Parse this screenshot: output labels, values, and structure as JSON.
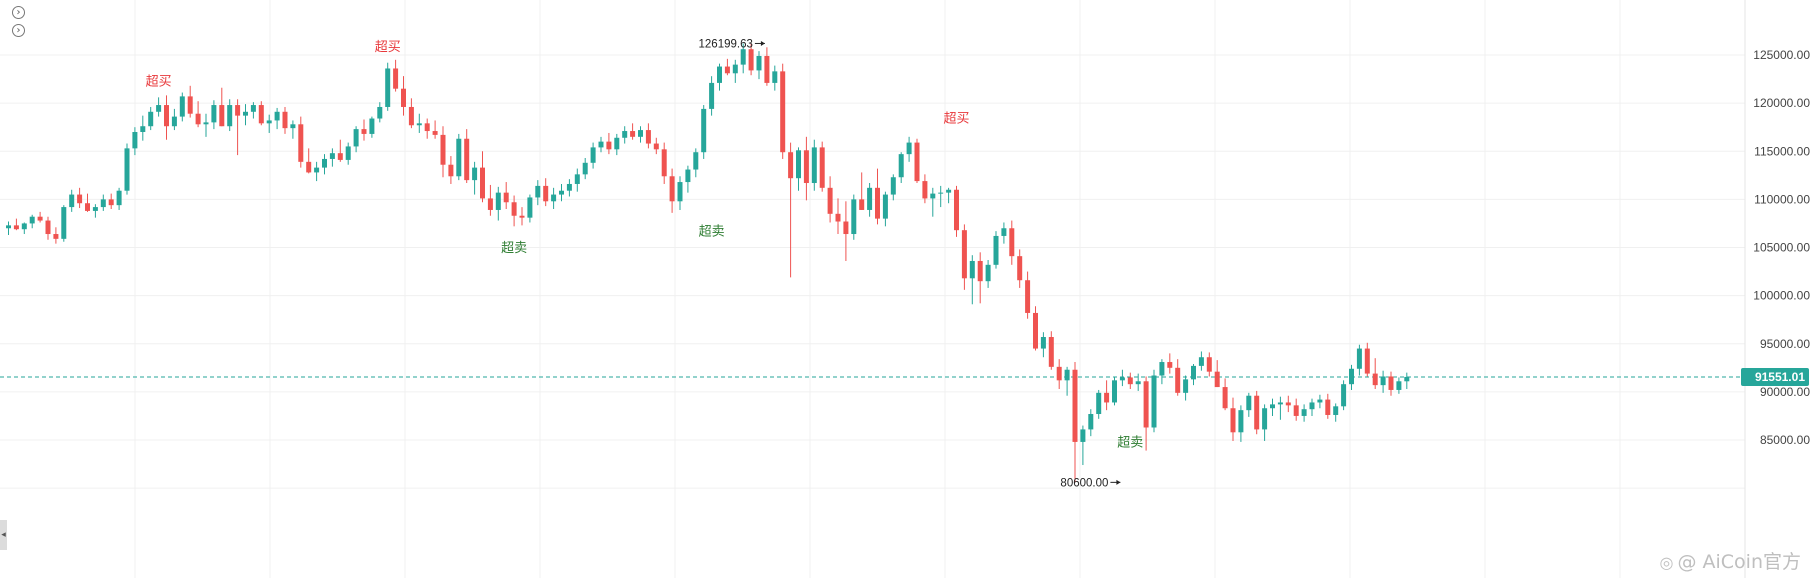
{
  "controls": {
    "collapse_icon_1": "›",
    "collapse_icon_2": "›",
    "side_handle_icon": "◂"
  },
  "watermark": {
    "icon": "◎",
    "text": "@ AiCoin官方"
  },
  "colors": {
    "up": "#26a69a",
    "down": "#ef5350",
    "buy_tag": "#e8383b",
    "sell_tag": "#2e7d32",
    "last_price_line": "#26a69a",
    "grid": "#f0f0f0"
  },
  "chart_data": {
    "type": "candlestick",
    "title": "",
    "xlabel": "",
    "ylabel": "",
    "ylim": [
      80000,
      128500
    ],
    "y_ticks": [
      85000,
      90000,
      95000,
      100000,
      105000,
      110000,
      115000,
      120000,
      125000
    ],
    "y_tick_labels": [
      "85000.00",
      "90000.00",
      "95000.00",
      "100000.00",
      "105000.00",
      "110000.00",
      "115000.00",
      "120000.00",
      "125000.00"
    ],
    "grid": true,
    "last_price": 91551.01,
    "last_price_label": "91551.01",
    "high_marker": {
      "value": 126199.63,
      "label": "126199.63",
      "index": 96
    },
    "low_marker": {
      "value": 80600.0,
      "label": "80600.00",
      "index": 141
    },
    "ohlc": [
      [
        107000,
        107700,
        106300,
        107300
      ],
      [
        107300,
        108000,
        106800,
        106900
      ],
      [
        106900,
        107600,
        106400,
        107500
      ],
      [
        107500,
        108400,
        107000,
        108200
      ],
      [
        108200,
        108700,
        107600,
        107800
      ],
      [
        107800,
        108200,
        105800,
        106400
      ],
      [
        106400,
        107100,
        105400,
        105900
      ],
      [
        105900,
        109400,
        105600,
        109200
      ],
      [
        109200,
        111000,
        108700,
        110500
      ],
      [
        110500,
        111200,
        109100,
        109600
      ],
      [
        109600,
        110600,
        108700,
        108800
      ],
      [
        108800,
        109500,
        108100,
        109200
      ],
      [
        109200,
        110500,
        108800,
        110000
      ],
      [
        110000,
        110600,
        109000,
        109400
      ],
      [
        109400,
        111200,
        108900,
        110900
      ],
      [
        110900,
        115800,
        110500,
        115300
      ],
      [
        115300,
        117500,
        114600,
        117000
      ],
      [
        117000,
        118700,
        116100,
        117600
      ],
      [
        117600,
        119600,
        117200,
        119100
      ],
      [
        119100,
        120600,
        118600,
        119800
      ],
      [
        119800,
        120800,
        116200,
        117600
      ],
      [
        117600,
        119400,
        117200,
        118600
      ],
      [
        118600,
        121100,
        118100,
        120700
      ],
      [
        120700,
        121800,
        118500,
        118900
      ],
      [
        118900,
        120200,
        117500,
        117800
      ],
      [
        117800,
        118900,
        116500,
        118000
      ],
      [
        118000,
        120300,
        117300,
        119800
      ],
      [
        119800,
        121600,
        117600,
        117600
      ],
      [
        117600,
        120400,
        117100,
        119800
      ],
      [
        119800,
        120400,
        114600,
        118700
      ],
      [
        118700,
        119900,
        117700,
        119100
      ],
      [
        119100,
        120100,
        118400,
        119800
      ],
      [
        119800,
        120200,
        117700,
        117900
      ],
      [
        117900,
        118800,
        116900,
        118200
      ],
      [
        118200,
        119500,
        117300,
        119100
      ],
      [
        119100,
        119600,
        116800,
        117400
      ],
      [
        117400,
        118200,
        116300,
        117800
      ],
      [
        117800,
        118600,
        113300,
        113900
      ],
      [
        113900,
        115300,
        112700,
        112800
      ],
      [
        112800,
        113900,
        111900,
        113300
      ],
      [
        113300,
        114700,
        112600,
        114200
      ],
      [
        114200,
        115300,
        113400,
        114800
      ],
      [
        114800,
        116200,
        113900,
        114100
      ],
      [
        114100,
        115900,
        113600,
        115500
      ],
      [
        115500,
        117600,
        114900,
        117300
      ],
      [
        117300,
        118300,
        116100,
        116800
      ],
      [
        116800,
        118600,
        116400,
        118400
      ],
      [
        118400,
        120100,
        118000,
        119600
      ],
      [
        119600,
        124200,
        119200,
        123600
      ],
      [
        123600,
        124500,
        121200,
        121500
      ],
      [
        121500,
        122800,
        118700,
        119600
      ],
      [
        119600,
        120500,
        117400,
        117700
      ],
      [
        117700,
        118900,
        116900,
        117900
      ],
      [
        117900,
        118400,
        116300,
        117100
      ],
      [
        117100,
        118200,
        116300,
        116700
      ],
      [
        116700,
        117600,
        112300,
        113600
      ],
      [
        113600,
        114500,
        111600,
        112400
      ],
      [
        112400,
        116800,
        112000,
        116300
      ],
      [
        116300,
        117300,
        111700,
        112000
      ],
      [
        112000,
        113900,
        110500,
        113300
      ],
      [
        113300,
        115000,
        109700,
        110100
      ],
      [
        110100,
        111500,
        108300,
        108900
      ],
      [
        108900,
        111300,
        107800,
        110700
      ],
      [
        110700,
        111800,
        109000,
        109700
      ],
      [
        109700,
        110400,
        107200,
        108300
      ],
      [
        108300,
        109200,
        107300,
        108100
      ],
      [
        108100,
        110500,
        107600,
        110200
      ],
      [
        110200,
        112000,
        109400,
        111400
      ],
      [
        111400,
        112200,
        109300,
        109800
      ],
      [
        109800,
        111200,
        109000,
        110500
      ],
      [
        110500,
        111600,
        109800,
        110900
      ],
      [
        110900,
        112100,
        110300,
        111600
      ],
      [
        111600,
        113200,
        110800,
        112600
      ],
      [
        112600,
        114300,
        112100,
        113800
      ],
      [
        113800,
        115900,
        113200,
        115400
      ],
      [
        115400,
        116500,
        114900,
        116000
      ],
      [
        116000,
        116900,
        114700,
        115200
      ],
      [
        115200,
        116800,
        114600,
        116400
      ],
      [
        116400,
        117600,
        115800,
        117100
      ],
      [
        117100,
        117900,
        116200,
        116500
      ],
      [
        116500,
        117600,
        115900,
        117200
      ],
      [
        117200,
        117900,
        115300,
        115800
      ],
      [
        115800,
        116400,
        114700,
        115200
      ],
      [
        115200,
        115900,
        111600,
        112400
      ],
      [
        112400,
        113200,
        108600,
        109800
      ],
      [
        109800,
        112400,
        108900,
        111800
      ],
      [
        111800,
        113500,
        110700,
        113100
      ],
      [
        113100,
        115300,
        112300,
        114900
      ],
      [
        114900,
        119800,
        114200,
        119400
      ],
      [
        119400,
        122800,
        118700,
        122100
      ],
      [
        122100,
        124100,
        121300,
        123800
      ],
      [
        123800,
        124600,
        122900,
        123100
      ],
      [
        123100,
        124500,
        122100,
        124000
      ],
      [
        124000,
        126200,
        123100,
        125600
      ],
      [
        125600,
        126199.63,
        122900,
        123400
      ],
      [
        123400,
        125400,
        122500,
        124900
      ],
      [
        124900,
        125800,
        121800,
        122100
      ],
      [
        122100,
        123900,
        121300,
        123300
      ],
      [
        123300,
        124100,
        114200,
        114900
      ],
      [
        114900,
        115900,
        101900,
        112200
      ],
      [
        112200,
        115400,
        110900,
        115100
      ],
      [
        115100,
        116500,
        109900,
        111700
      ],
      [
        111700,
        116200,
        110900,
        115400
      ],
      [
        115400,
        116000,
        110800,
        111200
      ],
      [
        111200,
        112400,
        107600,
        108500
      ],
      [
        108500,
        110100,
        106400,
        107700
      ],
      [
        107700,
        109800,
        103600,
        106400
      ],
      [
        106400,
        110500,
        105800,
        110000
      ],
      [
        110000,
        112800,
        108900,
        108900
      ],
      [
        108900,
        111700,
        108200,
        111200
      ],
      [
        111200,
        113200,
        107400,
        108000
      ],
      [
        108000,
        110800,
        107200,
        110500
      ],
      [
        110500,
        112600,
        109900,
        112300
      ],
      [
        112300,
        114900,
        111700,
        114700
      ],
      [
        114700,
        116500,
        113900,
        115900
      ],
      [
        115900,
        116300,
        111700,
        111900
      ],
      [
        111900,
        112600,
        109600,
        110100
      ],
      [
        110100,
        111200,
        108200,
        110600
      ],
      [
        110600,
        111400,
        109200,
        110700
      ],
      [
        110700,
        111200,
        109600,
        111000
      ],
      [
        111000,
        111400,
        106100,
        106800
      ],
      [
        106800,
        107400,
        100600,
        101800
      ],
      [
        101800,
        104200,
        99100,
        103600
      ],
      [
        103600,
        104500,
        99200,
        101500
      ],
      [
        101500,
        103700,
        100800,
        103200
      ],
      [
        103200,
        106700,
        102800,
        106200
      ],
      [
        106200,
        107600,
        105400,
        107000
      ],
      [
        107000,
        107800,
        103200,
        104100
      ],
      [
        104100,
        104800,
        100800,
        101600
      ],
      [
        101600,
        102500,
        97600,
        98200
      ],
      [
        98200,
        98900,
        94300,
        94500
      ],
      [
        94500,
        96200,
        93600,
        95700
      ],
      [
        95700,
        96300,
        92300,
        92600
      ],
      [
        92600,
        93400,
        90300,
        91200
      ],
      [
        91200,
        92600,
        89600,
        92300
      ],
      [
        92300,
        93100,
        80600,
        84800
      ],
      [
        84800,
        86500,
        82400,
        86100
      ],
      [
        86100,
        88200,
        85400,
        87700
      ],
      [
        87700,
        90200,
        87200,
        89900
      ],
      [
        89900,
        91200,
        88100,
        88900
      ],
      [
        88900,
        91600,
        88600,
        91200
      ],
      [
        91200,
        92300,
        90600,
        91500
      ],
      [
        91500,
        92000,
        90300,
        90800
      ],
      [
        90800,
        91900,
        90100,
        91100
      ],
      [
        91100,
        91600,
        83900,
        86300
      ],
      [
        86300,
        92300,
        85800,
        91700
      ],
      [
        91700,
        93400,
        90800,
        93100
      ],
      [
        93100,
        94000,
        91900,
        92500
      ],
      [
        92500,
        93400,
        89600,
        89900
      ],
      [
        89900,
        91700,
        89100,
        91300
      ],
      [
        91300,
        92900,
        90700,
        92700
      ],
      [
        92700,
        94200,
        92200,
        93600
      ],
      [
        93600,
        94100,
        91600,
        92100
      ],
      [
        92100,
        93300,
        90500,
        90500
      ],
      [
        90500,
        91400,
        88100,
        88300
      ],
      [
        88300,
        89400,
        84900,
        85800
      ],
      [
        85800,
        88600,
        84800,
        88100
      ],
      [
        88100,
        89900,
        87400,
        89600
      ],
      [
        89600,
        90100,
        85600,
        86100
      ],
      [
        86100,
        88700,
        84900,
        88300
      ],
      [
        88300,
        89300,
        87500,
        88700
      ],
      [
        88700,
        89500,
        87100,
        88900
      ],
      [
        88900,
        89600,
        87900,
        88600
      ],
      [
        88600,
        89300,
        87000,
        87500
      ],
      [
        87500,
        88700,
        86900,
        88200
      ],
      [
        88200,
        89300,
        87500,
        88900
      ],
      [
        88900,
        89700,
        88300,
        89200
      ],
      [
        89200,
        89800,
        87200,
        87600
      ],
      [
        87600,
        88800,
        86900,
        88500
      ],
      [
        88500,
        91200,
        88100,
        90800
      ],
      [
        90800,
        92800,
        90200,
        92400
      ],
      [
        92400,
        94900,
        91700,
        94500
      ],
      [
        94500,
        95100,
        91600,
        91900
      ],
      [
        91900,
        93500,
        90300,
        90700
      ],
      [
        90700,
        92200,
        89900,
        91600
      ],
      [
        91600,
        92100,
        89600,
        90200
      ],
      [
        90200,
        91500,
        89800,
        91100
      ],
      [
        91100,
        92000,
        90300,
        91551.01
      ]
    ],
    "annotations": [
      {
        "text": "超买",
        "kind": "overbought",
        "index": 19,
        "value": 121600
      },
      {
        "text": "超买",
        "kind": "overbought",
        "index": 48,
        "value": 125200
      },
      {
        "text": "超卖",
        "kind": "oversold",
        "index": 64,
        "value": 106000
      },
      {
        "text": "超卖",
        "kind": "oversold",
        "index": 89,
        "value": 107700
      },
      {
        "text": "超买",
        "kind": "overbought",
        "index": 120,
        "value": 117800
      },
      {
        "text": "超卖",
        "kind": "oversold",
        "index": 142,
        "value": 85800
      }
    ]
  }
}
